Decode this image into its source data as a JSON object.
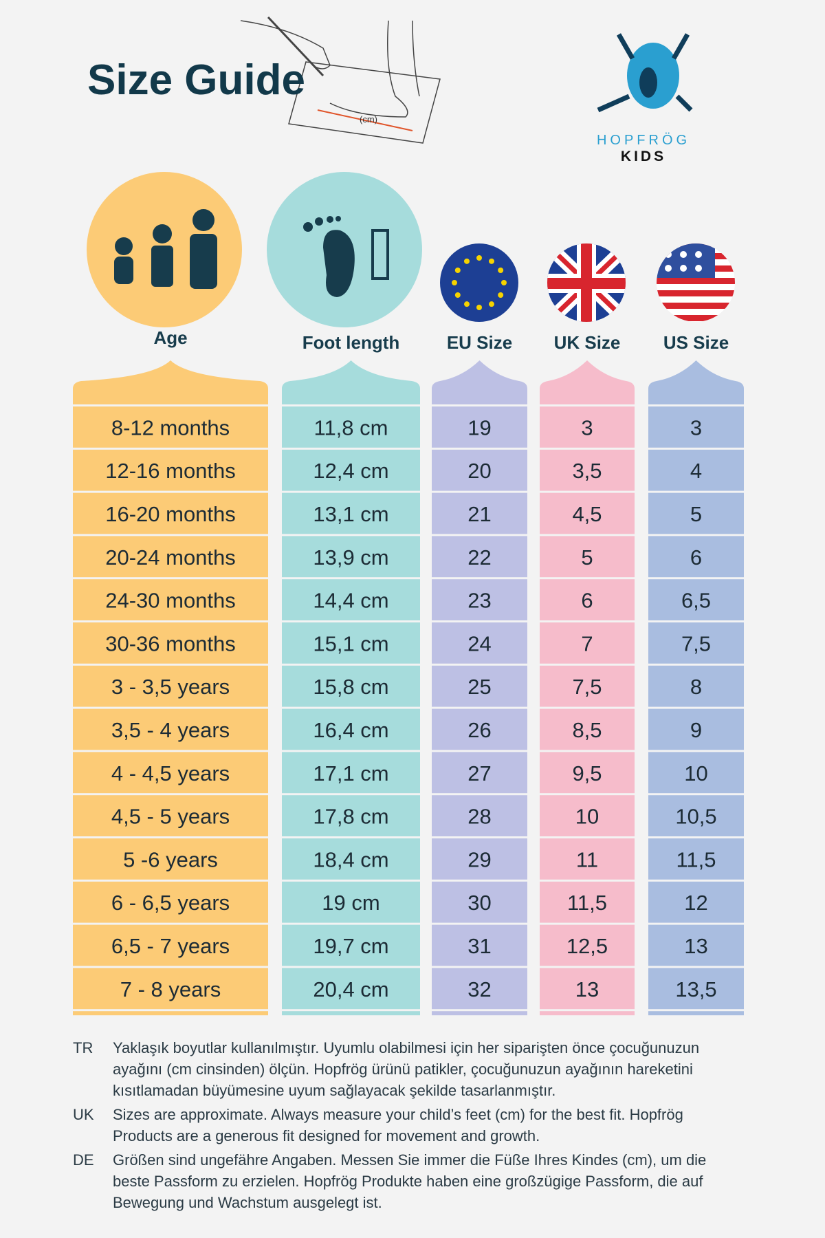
{
  "header": {
    "title": "Size Guide",
    "illustration_label": "(cm)"
  },
  "logo": {
    "brand": "HOPFRÖG",
    "sub": "KIDS"
  },
  "table": {
    "columns": [
      "Age",
      "Foot length",
      "EU Size",
      "UK Size",
      "US Size"
    ],
    "rows": [
      [
        "8-12 months",
        "11,8 cm",
        "19",
        "3",
        "3"
      ],
      [
        "12-16 months",
        "12,4 cm",
        "20",
        "3,5",
        "4"
      ],
      [
        "16-20 months",
        "13,1 cm",
        "21",
        "4,5",
        "5"
      ],
      [
        "20-24 months",
        "13,9 cm",
        "22",
        "5",
        "6"
      ],
      [
        "24-30 months",
        "14,4 cm",
        "23",
        "6",
        "6,5"
      ],
      [
        "30-36 months",
        "15,1 cm",
        "24",
        "7",
        "7,5"
      ],
      [
        "3 - 3,5 years",
        "15,8 cm",
        "25",
        "7,5",
        "8"
      ],
      [
        "3,5 - 4 years",
        "16,4 cm",
        "26",
        "8,5",
        "9"
      ],
      [
        "4 - 4,5 years",
        "17,1 cm",
        "27",
        "9,5",
        "10"
      ],
      [
        "4,5 - 5 years",
        "17,8 cm",
        "28",
        "10",
        "10,5"
      ],
      [
        "5 -6 years",
        "18,4 cm",
        "29",
        "11",
        "11,5"
      ],
      [
        "6 - 6,5 years",
        "19 cm",
        "30",
        "11,5",
        "12"
      ],
      [
        "6,5 - 7 years",
        "19,7 cm",
        "31",
        "12,5",
        "13"
      ],
      [
        "7 - 8 years",
        "20,4 cm",
        "32",
        "13",
        "13,5"
      ]
    ]
  },
  "notes": [
    {
      "lang": "TR",
      "text": "Yaklaşık boyutlar kullanılmıştır. Uyumlu olabilmesi için her siparişten önce çocuğunuzun ayağını (cm cinsinden) ölçün. Hopfrög ürünü patikler, çocuğunuzun ayağının hareketini kısıtlamadan büyümesine uyum sağlayacak şekilde tasarlanmıştır."
    },
    {
      "lang": "UK",
      "text": "Sizes are approximate. Always measure your child’s feet (cm) for the best fit. Hopfrög Products are a generous fit designed for movement and growth."
    },
    {
      "lang": "DE",
      "text": "Größen sind ungefähre Angaben. Messen Sie immer die Füße Ihres Kindes (cm), um die beste Passform zu erzielen. Hopfrög Produkte haben eine großzügige Passform, die auf Bewegung und Wachstum ausgelegt ist."
    }
  ]
}
